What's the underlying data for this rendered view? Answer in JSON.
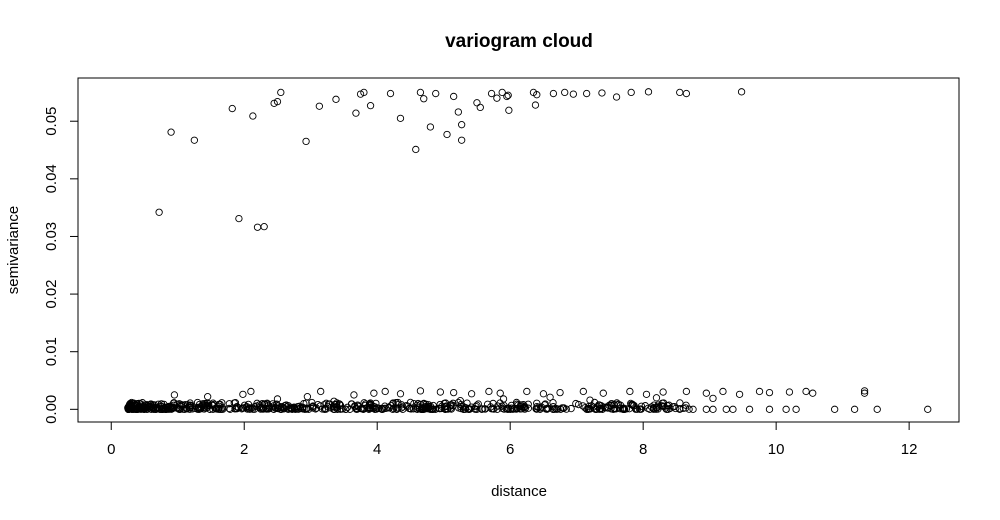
{
  "chart_data": {
    "type": "scatter",
    "title": "variogram cloud",
    "xlabel": "distance",
    "ylabel": "semivariance",
    "xlim": [
      -0.5,
      12.75
    ],
    "ylim": [
      -0.0022,
      0.0575
    ],
    "x_ticks": [
      0,
      2,
      4,
      6,
      8,
      10,
      12
    ],
    "x_tick_labels": [
      "0",
      "2",
      "4",
      "6",
      "8",
      "10",
      "12"
    ],
    "y_ticks": [
      0,
      0.01,
      0.02,
      0.03,
      0.04,
      0.05
    ],
    "y_tick_labels": [
      "0.00",
      "0.01",
      "0.02",
      "0.03",
      "0.04",
      "0.05"
    ],
    "marker": "open-circle",
    "grid": false,
    "series": [
      {
        "points": [
          [
            0.72,
            0.0342
          ],
          [
            0.9,
            0.0481
          ],
          [
            1.25,
            0.0467
          ],
          [
            1.82,
            0.0522
          ],
          [
            2.13,
            0.0509
          ],
          [
            2.45,
            0.0531
          ],
          [
            2.5,
            0.0534
          ],
          [
            2.55,
            0.055
          ],
          [
            2.93,
            0.0465
          ],
          [
            3.13,
            0.0526
          ],
          [
            3.38,
            0.0538
          ],
          [
            3.68,
            0.0514
          ],
          [
            3.75,
            0.0547
          ],
          [
            3.8,
            0.055
          ],
          [
            3.9,
            0.0527
          ],
          [
            4.2,
            0.0548
          ],
          [
            4.35,
            0.0505
          ],
          [
            4.58,
            0.0451
          ],
          [
            4.65,
            0.055
          ],
          [
            4.7,
            0.0539
          ],
          [
            4.8,
            0.049
          ],
          [
            4.88,
            0.0548
          ],
          [
            5.05,
            0.0477
          ],
          [
            5.15,
            0.0543
          ],
          [
            5.22,
            0.0516
          ],
          [
            5.27,
            0.0494
          ],
          [
            5.27,
            0.0467
          ],
          [
            5.5,
            0.0532
          ],
          [
            5.55,
            0.0524
          ],
          [
            5.72,
            0.0548
          ],
          [
            5.8,
            0.054
          ],
          [
            5.88,
            0.055
          ],
          [
            5.95,
            0.0543
          ],
          [
            5.97,
            0.0545
          ],
          [
            5.98,
            0.0519
          ],
          [
            6.35,
            0.055
          ],
          [
            6.38,
            0.0528
          ],
          [
            6.4,
            0.0546
          ],
          [
            6.65,
            0.0548
          ],
          [
            6.82,
            0.055
          ],
          [
            6.95,
            0.0547
          ],
          [
            7.15,
            0.0548
          ],
          [
            7.38,
            0.0549
          ],
          [
            7.6,
            0.0542
          ],
          [
            7.82,
            0.055
          ],
          [
            8.08,
            0.0551
          ],
          [
            8.55,
            0.055
          ],
          [
            8.65,
            0.0548
          ],
          [
            9.48,
            0.0551
          ],
          [
            1.92,
            0.0331
          ],
          [
            2.2,
            0.0316
          ],
          [
            2.3,
            0.0317
          ],
          [
            0.95,
            0.0025
          ],
          [
            1.45,
            0.0022
          ],
          [
            1.98,
            0.0026
          ],
          [
            2.1,
            0.0031
          ],
          [
            2.5,
            0.0018
          ],
          [
            2.95,
            0.0022
          ],
          [
            3.15,
            0.0031
          ],
          [
            3.65,
            0.0025
          ],
          [
            3.95,
            0.0028
          ],
          [
            4.12,
            0.0031
          ],
          [
            4.35,
            0.0027
          ],
          [
            4.65,
            0.0032
          ],
          [
            4.95,
            0.003
          ],
          [
            5.15,
            0.0029
          ],
          [
            5.42,
            0.0027
          ],
          [
            5.68,
            0.0031
          ],
          [
            5.85,
            0.0028
          ],
          [
            6.25,
            0.0031
          ],
          [
            6.5,
            0.0027
          ],
          [
            6.75,
            0.0029
          ],
          [
            7.1,
            0.0031
          ],
          [
            7.4,
            0.0028
          ],
          [
            7.8,
            0.0031
          ],
          [
            8.05,
            0.0026
          ],
          [
            8.3,
            0.003
          ],
          [
            8.65,
            0.0031
          ],
          [
            8.95,
            0.0028
          ],
          [
            9.2,
            0.0031
          ],
          [
            9.45,
            0.0026
          ],
          [
            9.75,
            0.0031
          ],
          [
            9.9,
            0.0029
          ],
          [
            10.2,
            0.003
          ],
          [
            10.45,
            0.0031
          ],
          [
            10.55,
            0.0028
          ],
          [
            11.33,
            0.0032
          ],
          [
            11.33,
            0.0028
          ],
          [
            3.35,
            0.0014
          ],
          [
            4.5,
            0.0012
          ],
          [
            5.9,
            0.0018
          ],
          [
            6.6,
            0.0021
          ],
          [
            7.2,
            0.0016
          ],
          [
            8.2,
            0.002
          ],
          [
            9.05,
            0.0019
          ],
          [
            5.25,
            0.0015
          ],
          [
            6.1,
            0.0009
          ],
          [
            8.95,
            0.0
          ],
          [
            9.05,
            0.0
          ],
          [
            9.25,
            0.0
          ],
          [
            9.35,
            0.0
          ],
          [
            9.6,
            0.0
          ],
          [
            9.9,
            0.0
          ],
          [
            10.15,
            0.0
          ],
          [
            10.3,
            0.0
          ],
          [
            10.88,
            0.0
          ],
          [
            11.18,
            0.0
          ],
          [
            11.52,
            0.0
          ],
          [
            12.28,
            0.0
          ],
          [
            7.3,
            0.0
          ],
          [
            7.55,
            0.0
          ],
          [
            7.72,
            0.0
          ],
          [
            8.1,
            0.0
          ],
          [
            8.35,
            0.0
          ],
          [
            8.55,
            0.0
          ],
          [
            8.75,
            0.0
          ]
        ]
      }
    ],
    "dense_band": {
      "x_range": [
        0.25,
        8.7
      ],
      "y_range": [
        0.0,
        0.0012
      ],
      "count": 700
    }
  }
}
